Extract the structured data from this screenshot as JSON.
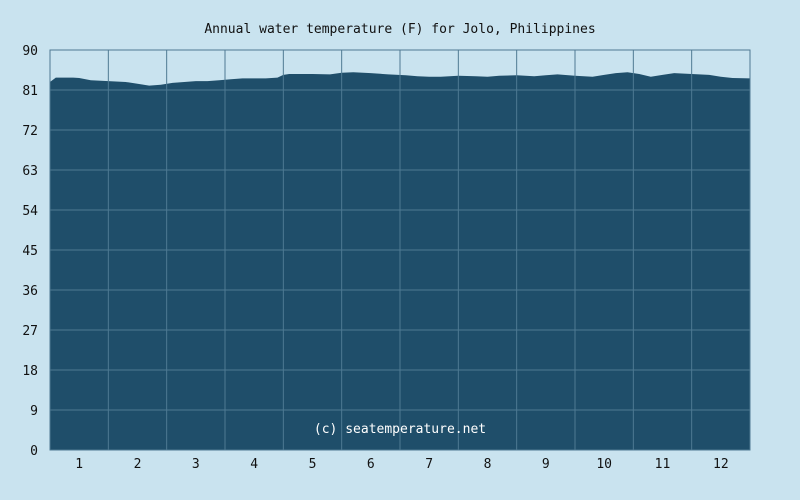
{
  "chart_data": {
    "type": "area",
    "title": "Annual water temperature (F) for Jolo, Philippines",
    "xlabel": "",
    "ylabel": "",
    "ylim": [
      0,
      90
    ],
    "y_ticks": [
      "0",
      "9",
      "18",
      "27",
      "36",
      "45",
      "54",
      "63",
      "72",
      "81",
      "90"
    ],
    "x_ticks": [
      "1",
      "2",
      "3",
      "4",
      "5",
      "6",
      "7",
      "8",
      "9",
      "10",
      "11",
      "12"
    ],
    "x_range": [
      0.5,
      12.5
    ],
    "grid": true,
    "x": [
      0.5,
      0.6,
      0.9,
      1.0,
      1.2,
      1.5,
      1.8,
      2.0,
      2.2,
      2.4,
      2.6,
      2.8,
      3.0,
      3.2,
      3.4,
      3.6,
      3.8,
      4.0,
      4.2,
      4.4,
      4.5,
      4.6,
      4.8,
      5.0,
      5.3,
      5.5,
      5.7,
      6.0,
      6.3,
      6.6,
      6.8,
      7.0,
      7.2,
      7.5,
      7.8,
      8.0,
      8.2,
      8.5,
      8.8,
      9.0,
      9.2,
      9.5,
      9.8,
      10.0,
      10.2,
      10.4,
      10.6,
      10.8,
      11.0,
      11.2,
      11.5,
      11.8,
      12.0,
      12.2,
      12.5
    ],
    "y": [
      82.8,
      83.8,
      83.8,
      83.7,
      83.2,
      83.0,
      82.8,
      82.4,
      82.0,
      82.2,
      82.6,
      82.8,
      83.0,
      83.0,
      83.2,
      83.4,
      83.6,
      83.6,
      83.6,
      83.8,
      84.4,
      84.6,
      84.6,
      84.6,
      84.5,
      84.9,
      85.0,
      84.8,
      84.5,
      84.3,
      84.1,
      84.0,
      84.0,
      84.2,
      84.1,
      84.0,
      84.2,
      84.3,
      84.1,
      84.3,
      84.5,
      84.2,
      84.0,
      84.4,
      84.8,
      85.0,
      84.6,
      84.0,
      84.4,
      84.8,
      84.6,
      84.4,
      84.0,
      83.7,
      83.6
    ],
    "series_color": "#1f4e6a",
    "background_color": "#c9e3ef",
    "grid_color": "#4f7a93",
    "watermark": "(c) seatemperature.net"
  }
}
